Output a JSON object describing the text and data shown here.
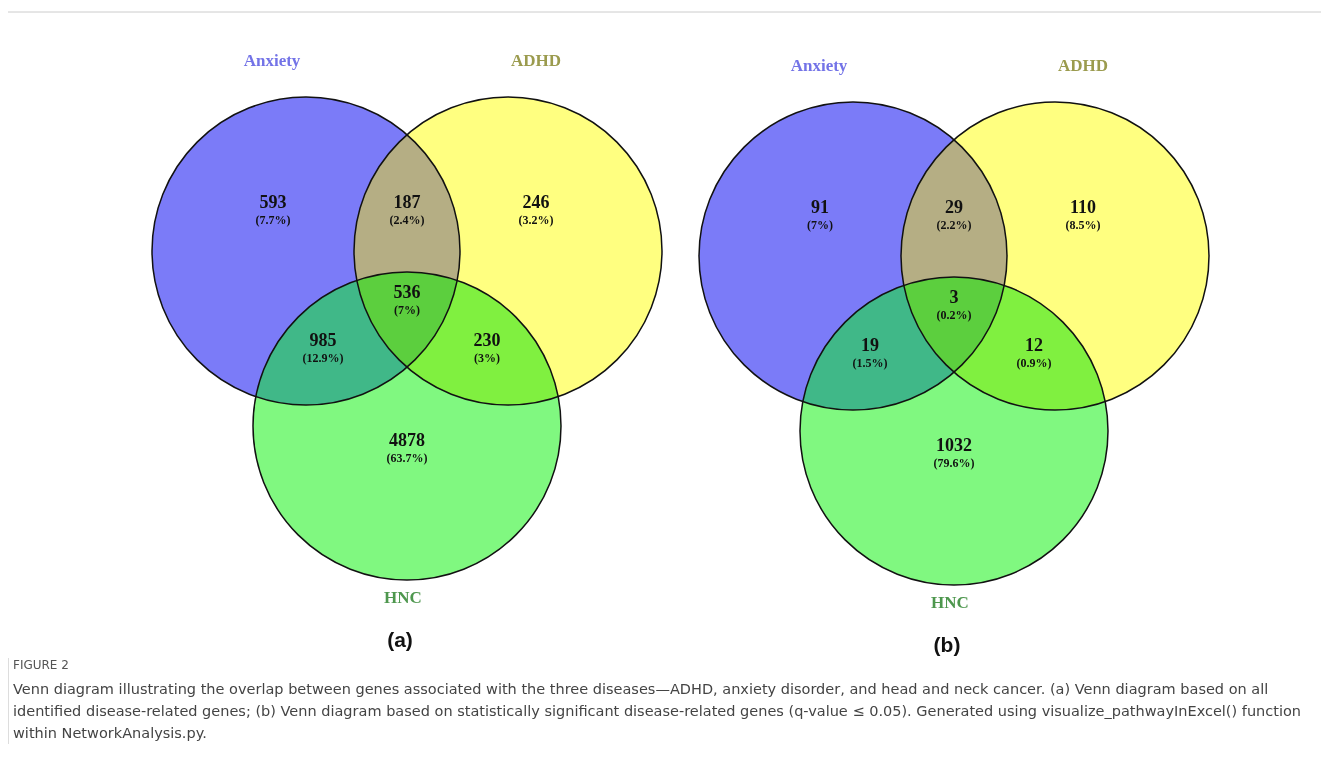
{
  "chart_data": [
    {
      "type": "other",
      "title": "(a)",
      "categories": [
        null,
        null,
        null,
        null,
        null,
        null,
        null
      ],
      "values": [
        593,
        187,
        246,
        536,
        985,
        230,
        4878
      ],
      "colors": [
        "#7b7bf8",
        "#b5ae84",
        "#ffff80",
        "#5ccf3e",
        "#40b888",
        "#80f040",
        "#80f880"
      ],
      "data_labels": true,
      "annotations": [
        "Anxiety",
        "ADHD",
        "HNC",
        "(7.7%)",
        "(2.4%)",
        "(3.2%)",
        "(7%)",
        "(12.9%)",
        "(3%)",
        "(63.7%)"
      ]
    },
    {
      "type": "other",
      "title": "(b)",
      "categories": [
        null,
        null,
        null,
        null,
        null,
        null,
        null
      ],
      "values": [
        91,
        29,
        110,
        3,
        19,
        12,
        1032
      ],
      "colors": [
        "#7b7bf8",
        "#b5ae84",
        "#ffff80",
        "#5ccf3e",
        "#40b888",
        "#80f040",
        "#80f880"
      ],
      "data_labels": true,
      "annotations": [
        "Anxiety",
        "ADHD",
        "HNC",
        "(7%)",
        "(2.2%)",
        "(8.5%)",
        "(0.2%)",
        "(1.5%)",
        "(0.9%)",
        "(79.6%)",
        "FIGURE 2",
        "Venn diagram illustrating the overlap between genes associated with the three diseases—ADHD, anxiety disorder, and head and neck cancer. (a) Venn diagram based on all identified disease-related genes; (b) Venn diagram based on statistically significant disease-related genes (q-value ≤ 0.05). Generated using visualize_pathwayInExcel() function within NetworkAnalysis.py."
      ]
    }
  ]
}
